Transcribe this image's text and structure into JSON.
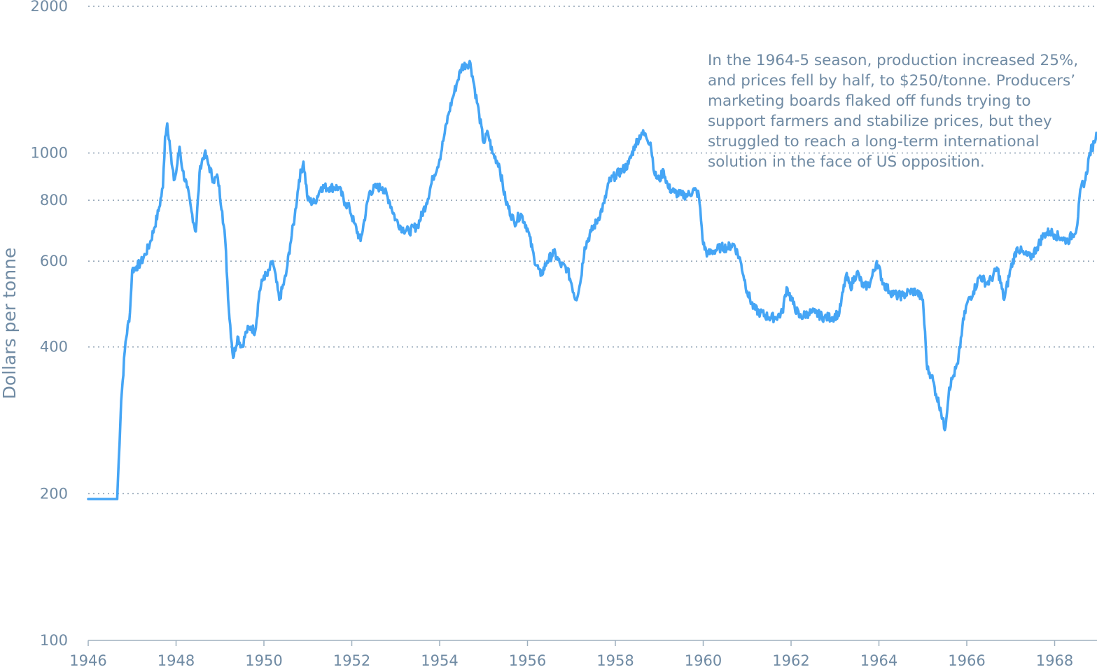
{
  "chart_data": {
    "type": "line",
    "title": "",
    "xlabel": "",
    "ylabel": "Dollars per tonne",
    "y_scale": "log",
    "ylim": [
      100,
      2000
    ],
    "xlim": [
      1946.0,
      1968.95
    ],
    "yticks": [
      100,
      200,
      400,
      600,
      800,
      1000,
      2000
    ],
    "ytick_labels": [
      "100",
      "200",
      "400",
      "600",
      "800",
      "1000",
      "2000"
    ],
    "xticks": [
      1946,
      1948,
      1950,
      1952,
      1954,
      1956,
      1958,
      1960,
      1962,
      1964,
      1966,
      1968
    ],
    "xtick_labels": [
      "1946",
      "1948",
      "1950",
      "1952",
      "1954",
      "1956",
      "1958",
      "1960",
      "1962",
      "1964",
      "1966",
      "1968"
    ],
    "grid": "horizontal dotted",
    "annotation": "In the 1964-5 season, production increased 25%, and prices fell by half, to $250/tonne. Producers’ marketing boards flaked off funds trying to support farmers and stabilize prices, but they struggled to reach a long-term international solution in the face of US opposition.",
    "series": [
      {
        "color": "#45a5f5",
        "x": [
          1946.0,
          1946.66,
          1946.75,
          1946.85,
          1946.95,
          1947.0,
          1947.1,
          1947.2,
          1947.3,
          1947.4,
          1947.5,
          1947.6,
          1947.7,
          1947.75,
          1947.8,
          1947.85,
          1947.9,
          1947.95,
          1948.0,
          1948.08,
          1948.15,
          1948.25,
          1948.35,
          1948.45,
          1948.55,
          1948.65,
          1948.75,
          1948.85,
          1948.95,
          1949.05,
          1949.12,
          1949.2,
          1949.3,
          1949.4,
          1949.5,
          1949.6,
          1949.7,
          1949.8,
          1949.9,
          1950.0,
          1950.08,
          1950.2,
          1950.35,
          1950.5,
          1950.6,
          1950.7,
          1950.8,
          1950.9,
          1951.0,
          1951.15,
          1951.3,
          1951.5,
          1951.7,
          1951.85,
          1951.95,
          1952.05,
          1952.2,
          1952.4,
          1952.55,
          1952.7,
          1952.85,
          1953.0,
          1953.15,
          1953.3,
          1953.5,
          1953.7,
          1953.85,
          1954.0,
          1954.1,
          1954.2,
          1954.3,
          1954.4,
          1954.5,
          1954.6,
          1954.7,
          1954.8,
          1954.9,
          1955.0,
          1955.1,
          1955.2,
          1955.35,
          1955.5,
          1955.7,
          1955.85,
          1956.0,
          1956.15,
          1956.3,
          1956.45,
          1956.6,
          1956.75,
          1956.9,
          1957.0,
          1957.1,
          1957.2,
          1957.3,
          1957.45,
          1957.6,
          1957.75,
          1957.85,
          1958.0,
          1958.15,
          1958.3,
          1958.45,
          1958.6,
          1958.7,
          1958.8,
          1958.9,
          1959.0,
          1959.1,
          1959.2,
          1959.35,
          1959.5,
          1959.65,
          1959.8,
          1959.9,
          1960.0,
          1960.1,
          1960.25,
          1960.4,
          1960.55,
          1960.7,
          1960.85,
          1961.0,
          1961.15,
          1961.3,
          1961.5,
          1961.65,
          1961.8,
          1961.9,
          1962.05,
          1962.2,
          1962.4,
          1962.55,
          1962.75,
          1962.95,
          1963.1,
          1963.25,
          1963.35,
          1963.5,
          1963.65,
          1963.8,
          1963.95,
          1964.1,
          1964.25,
          1964.4,
          1964.55,
          1964.7,
          1964.85,
          1965.0,
          1965.1,
          1965.2,
          1965.3,
          1965.4,
          1965.5,
          1965.6,
          1965.7,
          1965.8,
          1965.9,
          1966.0,
          1966.15,
          1966.3,
          1966.45,
          1966.55,
          1966.7,
          1966.85,
          1967.0,
          1967.15,
          1967.3,
          1967.45,
          1967.6,
          1967.75,
          1967.9,
          1968.0,
          1968.15,
          1968.3,
          1968.5,
          1968.6,
          1968.7,
          1968.8,
          1968.9,
          1968.95
        ],
        "y": [
          195,
          195,
          310,
          410,
          470,
          575,
          585,
          595,
          620,
          650,
          700,
          760,
          850,
          1080,
          1150,
          1060,
          950,
          880,
          910,
          1030,
          920,
          850,
          760,
          690,
          940,
          1000,
          940,
          880,
          890,
          760,
          660,
          480,
          380,
          420,
          400,
          430,
          440,
          430,
          520,
          560,
          560,
          600,
          500,
          560,
          650,
          740,
          880,
          960,
          800,
          790,
          850,
          850,
          850,
          790,
          770,
          720,
          660,
          830,
          850,
          850,
          800,
          730,
          700,
          690,
          710,
          790,
          890,
          970,
          1080,
          1200,
          1300,
          1400,
          1500,
          1520,
          1530,
          1350,
          1200,
          1050,
          1100,
          1000,
          950,
          800,
          720,
          750,
          700,
          610,
          560,
          600,
          625,
          590,
          580,
          540,
          500,
          540,
          640,
          690,
          730,
          790,
          870,
          900,
          920,
          950,
          1040,
          1100,
          1080,
          1050,
          900,
          880,
          920,
          850,
          830,
          820,
          820,
          840,
          820,
          650,
          620,
          630,
          640,
          640,
          650,
          600,
          520,
          480,
          470,
          460,
          460,
          470,
          530,
          490,
          460,
          470,
          470,
          460,
          460,
          470,
          560,
          530,
          570,
          530,
          540,
          600,
          540,
          520,
          510,
          510,
          520,
          520,
          500,
          360,
          350,
          320,
          300,
          270,
          330,
          350,
          370,
          440,
          490,
          520,
          560,
          540,
          550,
          580,
          500,
          580,
          640,
          620,
          610,
          640,
          680,
          690,
          680,
          670,
          660,
          700,
          850,
          880,
          1000,
          1050,
          1100
        ]
      }
    ]
  }
}
